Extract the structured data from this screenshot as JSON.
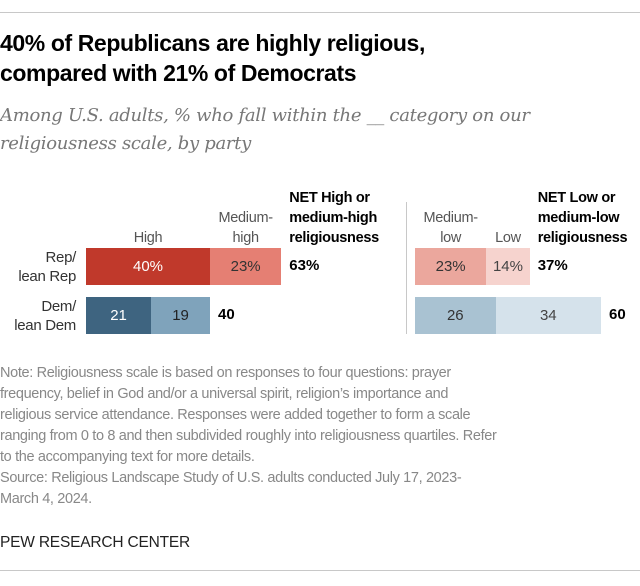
{
  "title": [
    "40% of Republicans are highly religious,",
    "compared with 21% of Democrats"
  ],
  "subtitle": [
    "Among U.S. adults, % who fall within the __ category on our",
    "religiousness scale, by party"
  ],
  "chart_data": {
    "type": "bar",
    "orientation": "horizontal-stacked",
    "categories": [
      "Rep/ lean Rep",
      "Dem/ lean Dem"
    ],
    "row_labels": [
      [
        "Rep/",
        "lean Rep"
      ],
      [
        "Dem/",
        "lean Dem"
      ]
    ],
    "panels": [
      {
        "series": [
          {
            "name": "High",
            "header": [
              "",
              "High"
            ],
            "values": [
              40,
              21
            ],
            "labels": [
              "40%",
              "21"
            ],
            "colors": [
              "#c0392b",
              "#3e6480"
            ],
            "text_colors": [
              "#fff",
              "#fff"
            ]
          },
          {
            "name": "Medium-high",
            "header": [
              "Medium-",
              "high"
            ],
            "values": [
              23,
              19
            ],
            "labels": [
              "23%",
              "19"
            ],
            "colors": [
              "#e57f73",
              "#7fa3bb"
            ],
            "text_colors": [
              "#333",
              "#222"
            ]
          }
        ],
        "net_header": [
          "NET High or",
          "medium-high",
          "religiousness"
        ],
        "net_values": [
          63,
          40
        ],
        "net_labels": [
          "63%",
          "40"
        ]
      },
      {
        "series": [
          {
            "name": "Medium-low",
            "header": [
              "Medium-",
              "low"
            ],
            "values": [
              23,
              26
            ],
            "labels": [
              "23%",
              "26"
            ],
            "colors": [
              "#eba79d",
              "#a9c2d2"
            ],
            "text_colors": [
              "#333",
              "#333"
            ]
          },
          {
            "name": "Low",
            "header": [
              "",
              "Low"
            ],
            "values": [
              14,
              34
            ],
            "labels": [
              "14%",
              "34"
            ],
            "colors": [
              "#f6d3ce",
              "#d5e2eb"
            ],
            "text_colors": [
              "#444",
              "#444"
            ]
          }
        ],
        "net_header": [
          "NET Low or",
          "medium-low",
          "religiousness"
        ],
        "net_values": [
          37,
          60
        ],
        "net_labels": [
          "37%",
          "60"
        ]
      }
    ]
  },
  "note": [
    "Note: Religiousness scale is based on responses to four questions: prayer",
    "frequency, belief in God and/or a universal spirit, religion’s importance and",
    "religious service attendance. Responses were added together to form a scale",
    "ranging from 0 to 8 and then subdivided roughly into religiousness quartiles. Refer",
    "to the accompanying text for more details.",
    "Source: Religious Landscape Study of U.S. adults conducted July 17, 2023-",
    "March 4, 2024."
  ],
  "footer": "PEW RESEARCH CENTER"
}
